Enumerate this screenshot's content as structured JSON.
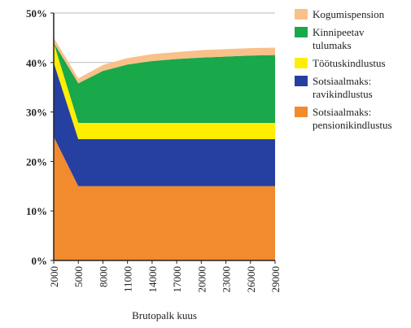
{
  "chart_data": {
    "type": "stacked-area",
    "x_label": "Brutopalk kuus",
    "x": [
      2000,
      5000,
      8000,
      11000,
      14000,
      17000,
      20000,
      23000,
      26000,
      29000
    ],
    "xlim": [
      2000,
      29000
    ],
    "xticks": [
      2000,
      5000,
      8000,
      11000,
      14000,
      17000,
      20000,
      23000,
      26000,
      29000
    ],
    "ylim": [
      0,
      50
    ],
    "yticks": [
      {
        "value": 0,
        "label": "0%"
      },
      {
        "value": 10,
        "label": "10%"
      },
      {
        "value": 20,
        "label": "20%"
      },
      {
        "value": 30,
        "label": "30%"
      },
      {
        "value": 40,
        "label": "40%"
      },
      {
        "value": 50,
        "label": "50%"
      }
    ],
    "grid": true,
    "series": [
      {
        "name": "Sotsiaalmaks: pensionikindlustus",
        "color": "#f28a2e",
        "values": [
          25,
          15,
          15,
          15,
          15,
          15,
          15,
          15,
          15,
          15
        ]
      },
      {
        "name": "Sotsiaalmaks: ravikindlustus",
        "color": "#2540a0",
        "values": [
          15,
          9.5,
          9.5,
          9.5,
          9.5,
          9.5,
          9.5,
          9.5,
          9.5,
          9.5
        ]
      },
      {
        "name": "Töötuskindlustus",
        "color": "#ffee00",
        "values": [
          4,
          3.3,
          3.3,
          3.3,
          3.3,
          3.3,
          3.3,
          3.3,
          3.3,
          3.3
        ]
      },
      {
        "name": "Kinnipeetav tulumaks",
        "color": "#19a84a",
        "values": [
          0,
          8,
          10.5,
          11.8,
          12.5,
          12.9,
          13.2,
          13.4,
          13.6,
          13.7
        ]
      },
      {
        "name": "Kogumispension",
        "color": "#f9c08a",
        "values": [
          1,
          1,
          1.2,
          1.3,
          1.4,
          1.4,
          1.5,
          1.5,
          1.5,
          1.5
        ]
      }
    ]
  }
}
